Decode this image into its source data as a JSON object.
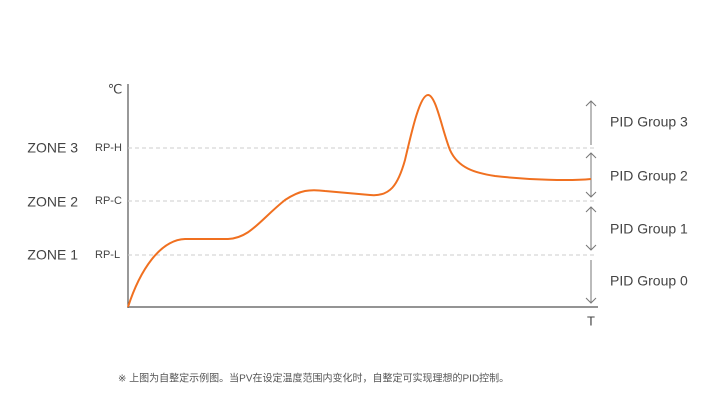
{
  "axes": {
    "y_label": "℃",
    "x_label": "T"
  },
  "zones": [
    {
      "zone": "ZONE 3",
      "level": "RP-H"
    },
    {
      "zone": "ZONE 2",
      "level": "RP-C"
    },
    {
      "zone": "ZONE 1",
      "level": "RP-L"
    }
  ],
  "groups": [
    "PID Group 3",
    "PID Group 2",
    "PID Group 1",
    "PID Group 0"
  ],
  "note": "※ 上图为自整定示例图。当PV在设定温度范围内变化时，自整定可实现理想的PID控制。"
}
